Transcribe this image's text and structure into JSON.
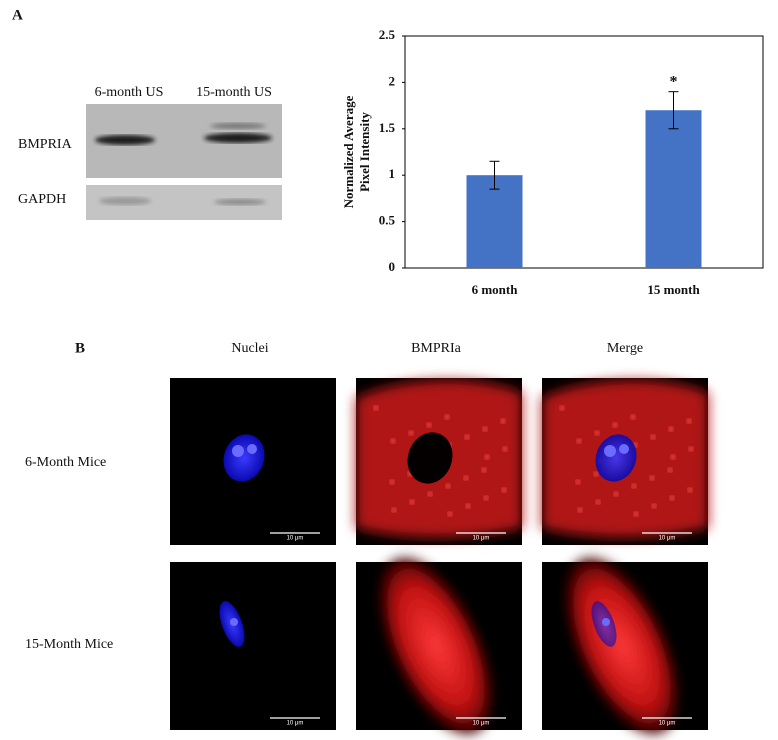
{
  "panel_a": {
    "label": "A",
    "blot": {
      "column_labels": [
        "6-month US",
        "15-month US"
      ],
      "row_labels": [
        "BMPRIA",
        "GAPDH"
      ]
    }
  },
  "chart_data": {
    "type": "bar",
    "ylabel": [
      "Normalized Average",
      "Pixel Intensity"
    ],
    "categories": [
      "6 month",
      "15 month"
    ],
    "values": [
      1,
      1.7
    ],
    "errors": [
      0.15,
      0.2
    ],
    "color": "#4472c4",
    "annotations": [
      {
        "text": "*",
        "category": "15 month"
      }
    ],
    "ylim": [
      0,
      2.5
    ],
    "yticks": [
      0,
      0.5,
      1,
      1.5,
      2,
      2.5
    ],
    "grid": false
  },
  "panel_b": {
    "label": "B",
    "column_labels": [
      "Nuclei",
      "BMPRIa",
      "Merge"
    ],
    "row_labels": [
      "6-Month Mice",
      "15-Month Mice"
    ],
    "scale_bar": "10 μm"
  }
}
